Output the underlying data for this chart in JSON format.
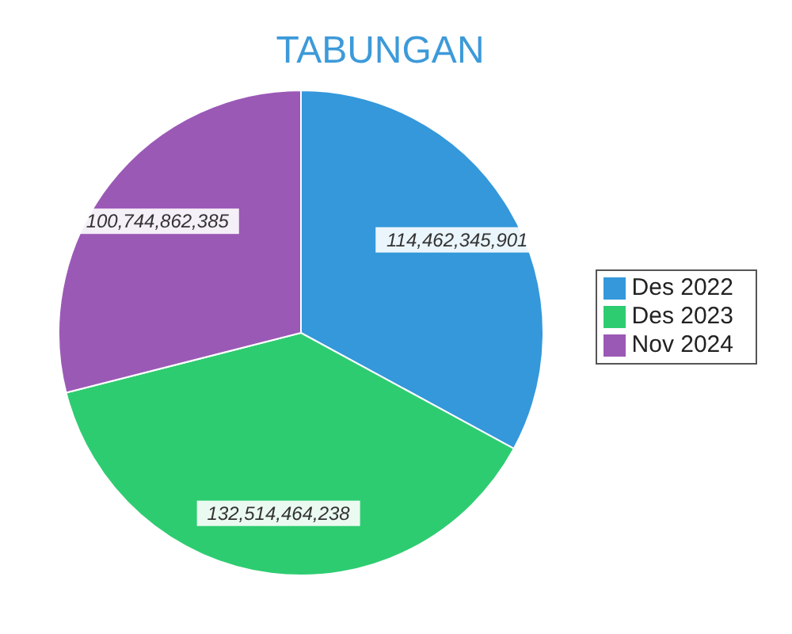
{
  "chart_data": {
    "type": "pie",
    "title": "TABUNGAN",
    "categories": [
      "Des 2022",
      "Des 2023",
      "Nov 2024"
    ],
    "values": [
      114462345901,
      132514464238,
      100744862385
    ],
    "colors": [
      "#3498db",
      "#2ecc71",
      "#9b59b6"
    ],
    "value_labels": [
      "114,462,345,901",
      "132,514,464,238",
      "100,744,862,385"
    ],
    "legend": "right"
  }
}
